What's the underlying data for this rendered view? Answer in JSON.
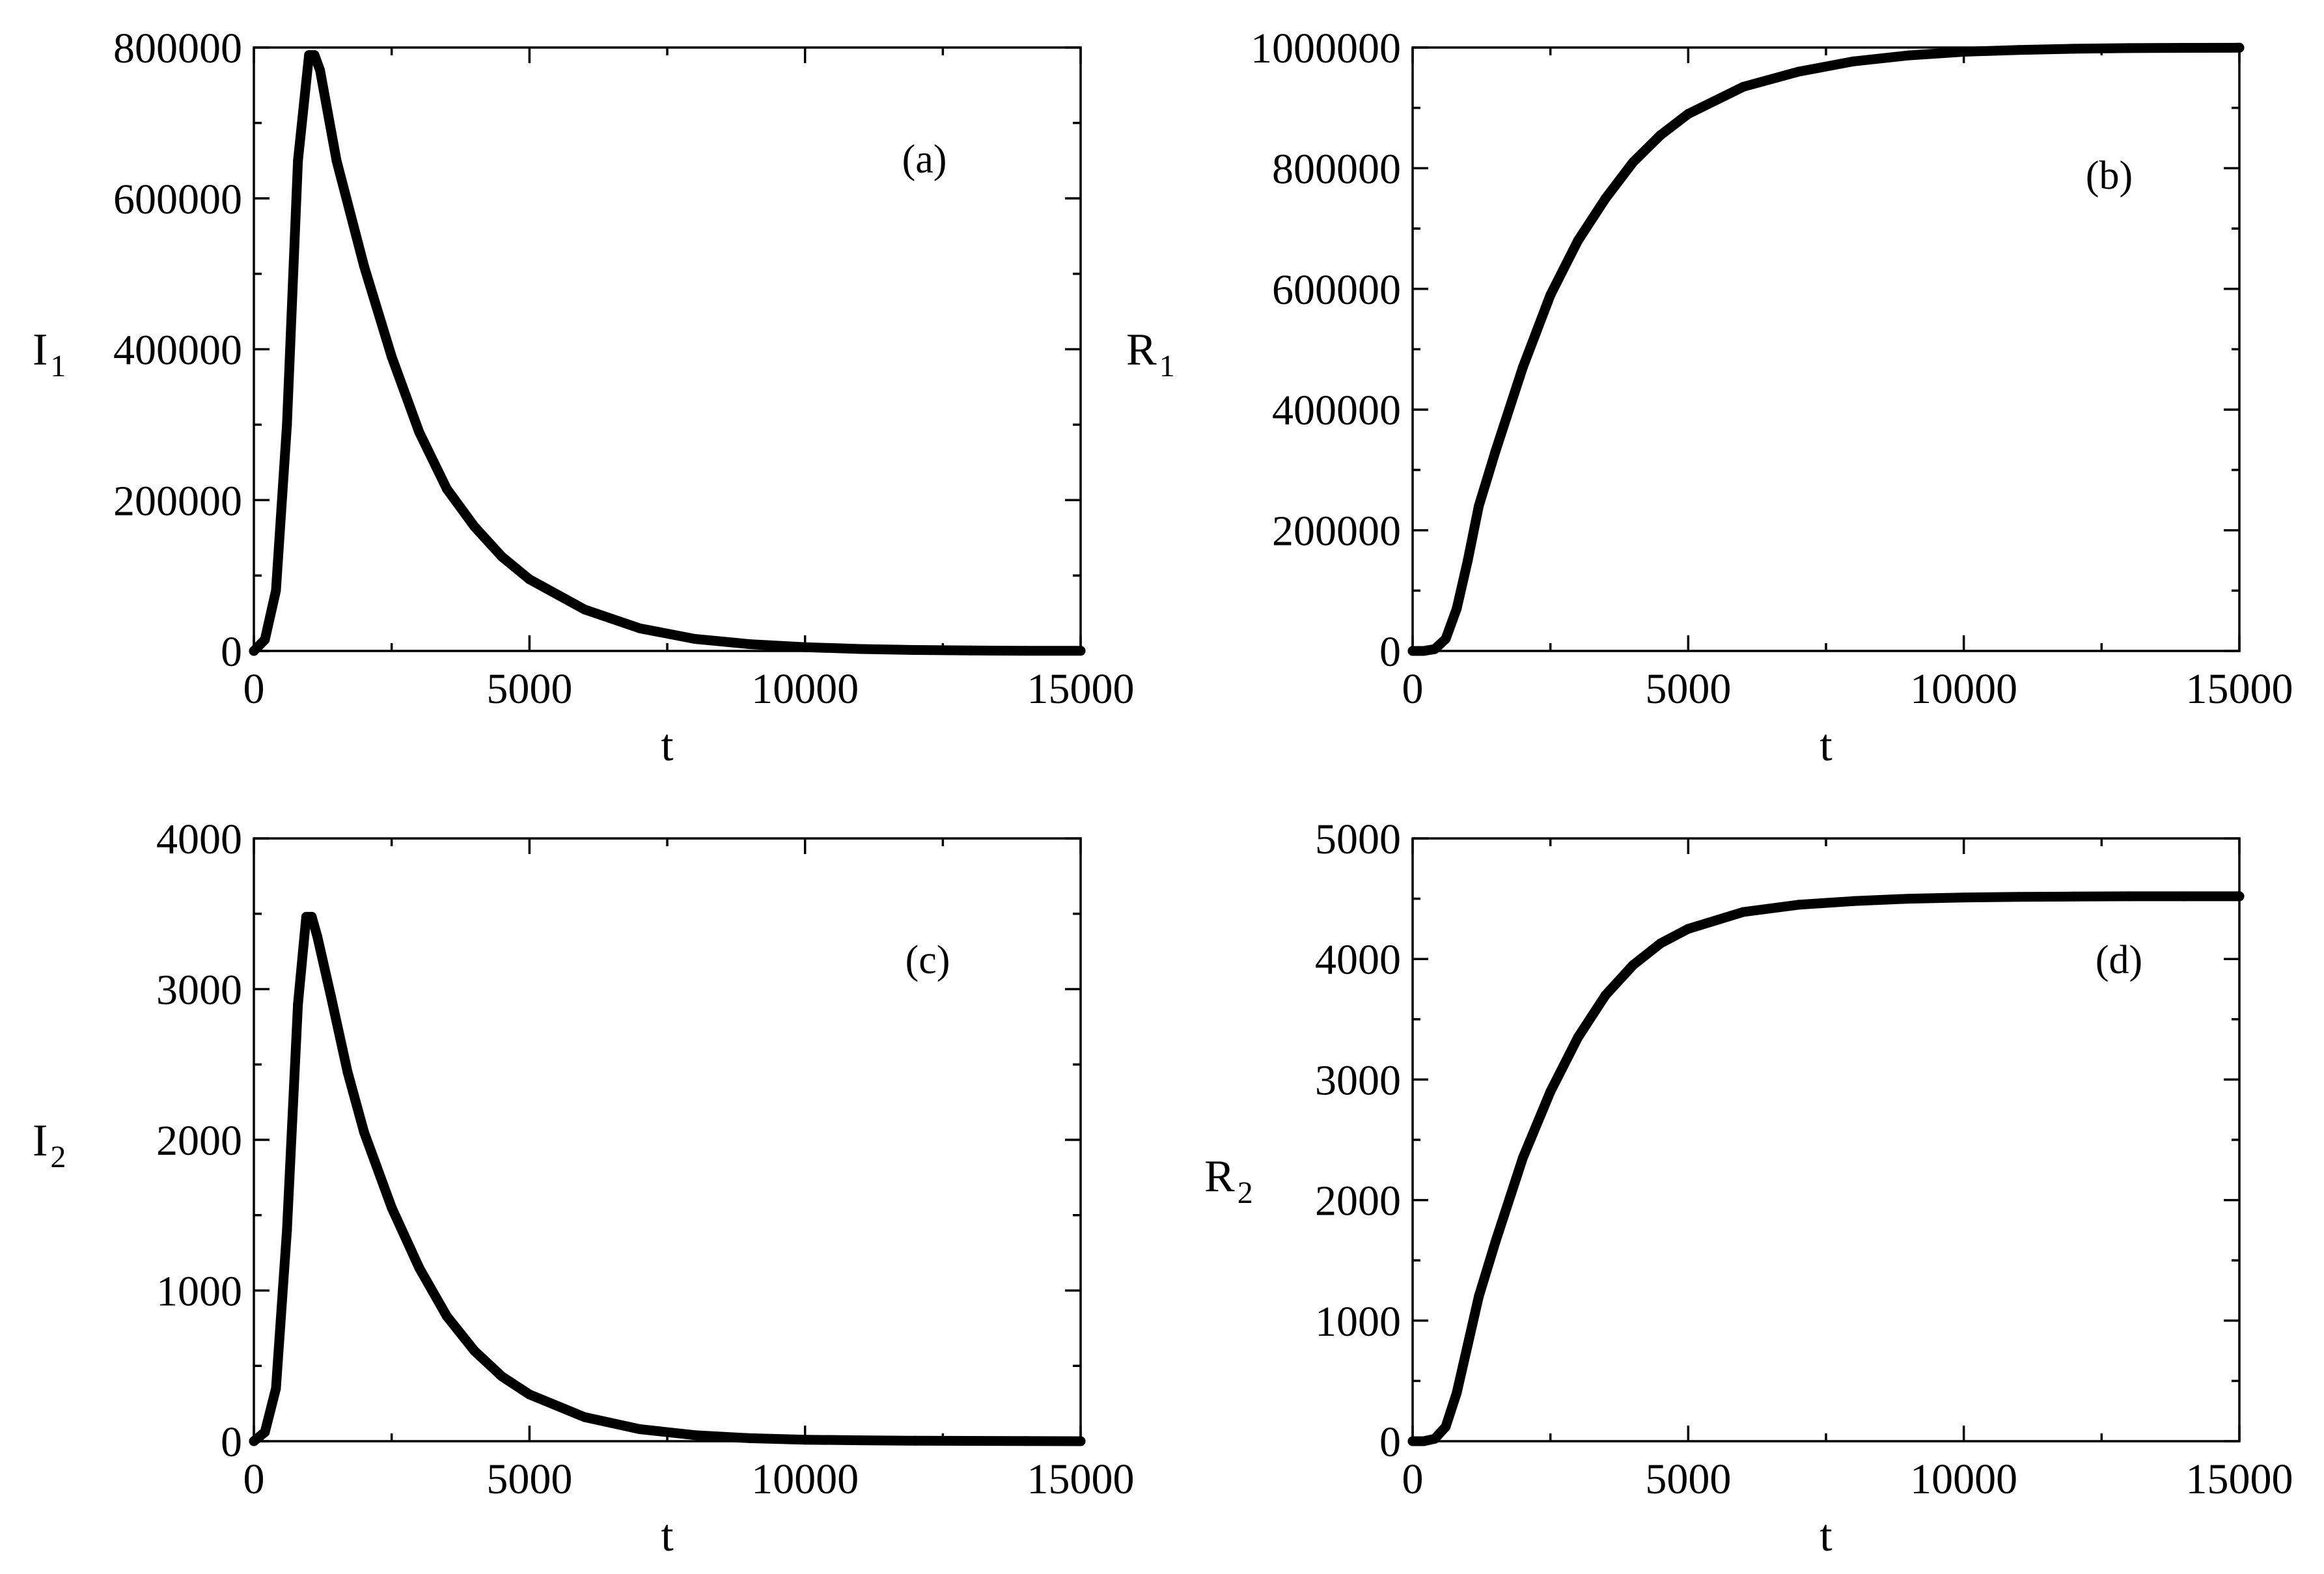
{
  "chart_data": [
    {
      "type": "line",
      "panel_label": "(a)",
      "ylabel": "I",
      "ylabel_sub": "1",
      "xlabel": "t",
      "xlim": [
        0,
        15000
      ],
      "ylim": [
        0,
        800000
      ],
      "xticks": [
        0,
        5000,
        10000,
        15000
      ],
      "yticks": [
        0,
        200000,
        400000,
        600000,
        800000
      ],
      "xtick_labels": [
        "0",
        "5000",
        "10000",
        "15000"
      ],
      "ytick_labels": [
        "0",
        "200000",
        "400000",
        "600000",
        "800000"
      ],
      "grid": false,
      "line_color": "#000000",
      "x": [
        0,
        200,
        400,
        600,
        800,
        1000,
        1100,
        1200,
        1500,
        2000,
        2500,
        3000,
        3500,
        4000,
        4500,
        5000,
        6000,
        7000,
        8000,
        9000,
        10000,
        11000,
        12000,
        13000,
        14000,
        15000
      ],
      "y": [
        0,
        15000,
        80000,
        300000,
        650000,
        790000,
        790000,
        770000,
        650000,
        510000,
        390000,
        290000,
        215000,
        165000,
        125000,
        95000,
        55000,
        30000,
        16000,
        9000,
        5000,
        2600,
        1300,
        600,
        300,
        150
      ]
    },
    {
      "type": "line",
      "panel_label": "(b)",
      "ylabel": "R",
      "ylabel_sub": "1",
      "xlabel": "t",
      "xlim": [
        0,
        15000
      ],
      "ylim": [
        0,
        1000000
      ],
      "xticks": [
        0,
        5000,
        10000,
        15000
      ],
      "yticks": [
        0,
        200000,
        400000,
        600000,
        800000,
        1000000
      ],
      "xtick_labels": [
        "0",
        "5000",
        "10000",
        "15000"
      ],
      "ytick_labels": [
        "0",
        "200000",
        "400000",
        "600000",
        "800000",
        "1000000"
      ],
      "grid": false,
      "line_color": "#000000",
      "x": [
        0,
        200,
        400,
        600,
        800,
        1000,
        1200,
        1500,
        2000,
        2500,
        3000,
        3500,
        4000,
        4500,
        5000,
        6000,
        7000,
        8000,
        9000,
        10000,
        11000,
        12000,
        13000,
        14000,
        15000
      ],
      "y": [
        0,
        0,
        3000,
        20000,
        70000,
        150000,
        240000,
        330000,
        470000,
        590000,
        680000,
        750000,
        810000,
        855000,
        890000,
        935000,
        960000,
        977000,
        987000,
        993000,
        996000,
        998000,
        999000,
        999500,
        999700
      ]
    },
    {
      "type": "line",
      "panel_label": "(c)",
      "ylabel": "I",
      "ylabel_sub": "2",
      "xlabel": "t",
      "xlim": [
        0,
        15000
      ],
      "ylim": [
        0,
        4000
      ],
      "xticks": [
        0,
        5000,
        10000,
        15000
      ],
      "yticks": [
        0,
        1000,
        2000,
        3000,
        4000
      ],
      "xtick_labels": [
        "0",
        "5000",
        "10000",
        "15000"
      ],
      "ytick_labels": [
        "0",
        "1000",
        "2000",
        "3000",
        "4000"
      ],
      "grid": false,
      "line_color": "#000000",
      "x": [
        0,
        200,
        400,
        600,
        800,
        950,
        1050,
        1150,
        1400,
        1700,
        2000,
        2500,
        3000,
        3500,
        4000,
        4500,
        5000,
        6000,
        7000,
        8000,
        9000,
        10000,
        11000,
        12000,
        13000,
        14000,
        15000
      ],
      "y": [
        0,
        60,
        350,
        1400,
        2900,
        3480,
        3480,
        3350,
        2950,
        2450,
        2050,
        1550,
        1150,
        830,
        600,
        430,
        310,
        160,
        80,
        40,
        20,
        10,
        6,
        3,
        2,
        1,
        0
      ]
    },
    {
      "type": "line",
      "panel_label": "(d)",
      "ylabel": "R",
      "ylabel_sub": "2",
      "xlabel": "t",
      "xlim": [
        0,
        15000
      ],
      "ylim": [
        0,
        5000
      ],
      "xticks": [
        0,
        5000,
        10000,
        15000
      ],
      "yticks": [
        0,
        1000,
        2000,
        3000,
        4000,
        5000
      ],
      "xtick_labels": [
        "0",
        "5000",
        "10000",
        "15000"
      ],
      "ytick_labels": [
        "0",
        "1000",
        "2000",
        "3000",
        "4000",
        "5000"
      ],
      "grid": false,
      "line_color": "#000000",
      "x": [
        0,
        200,
        400,
        600,
        800,
        1000,
        1200,
        1500,
        2000,
        2500,
        3000,
        3500,
        4000,
        4500,
        5000,
        6000,
        7000,
        8000,
        9000,
        10000,
        11000,
        12000,
        13000,
        14000,
        15000
      ],
      "y": [
        0,
        0,
        20,
        120,
        400,
        800,
        1200,
        1650,
        2350,
        2900,
        3350,
        3700,
        3950,
        4130,
        4250,
        4390,
        4450,
        4480,
        4500,
        4510,
        4515,
        4518,
        4520,
        4520,
        4520
      ]
    }
  ]
}
